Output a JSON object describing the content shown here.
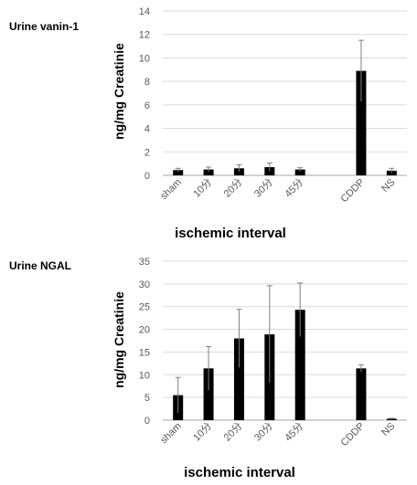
{
  "chart_data": [
    {
      "type": "bar",
      "title": "Urine vanin-1",
      "ylabel": "ng/mg Creatinie",
      "xlabel": "ischemic interval",
      "ylim": [
        0,
        14
      ],
      "yticks": [
        0,
        2,
        4,
        6,
        8,
        10,
        12,
        14
      ],
      "grid": true,
      "categories": [
        "sham",
        "10分",
        "20分",
        "30分",
        "45分",
        "",
        "CDDP",
        "NS"
      ],
      "values": [
        0.45,
        0.5,
        0.6,
        0.7,
        0.5,
        null,
        8.9,
        0.4
      ],
      "errors": [
        0.15,
        0.2,
        0.3,
        0.35,
        0.15,
        null,
        2.6,
        0.2
      ]
    },
    {
      "type": "bar",
      "title": "Urine NGAL",
      "ylabel": "ng/mg Creatinie",
      "xlabel": "ischemic interval",
      "ylim": [
        0,
        35
      ],
      "yticks": [
        0,
        5,
        10,
        15,
        20,
        25,
        30,
        35
      ],
      "grid": true,
      "categories": [
        "sham",
        "10分",
        "20分",
        "30分",
        "45分",
        "",
        "CDDP",
        "NS"
      ],
      "values": [
        5.5,
        11.4,
        18.0,
        18.9,
        24.3,
        null,
        11.4,
        0.3
      ],
      "errors": [
        3.9,
        4.8,
        6.4,
        10.7,
        5.9,
        null,
        0.8,
        0.1
      ]
    }
  ]
}
